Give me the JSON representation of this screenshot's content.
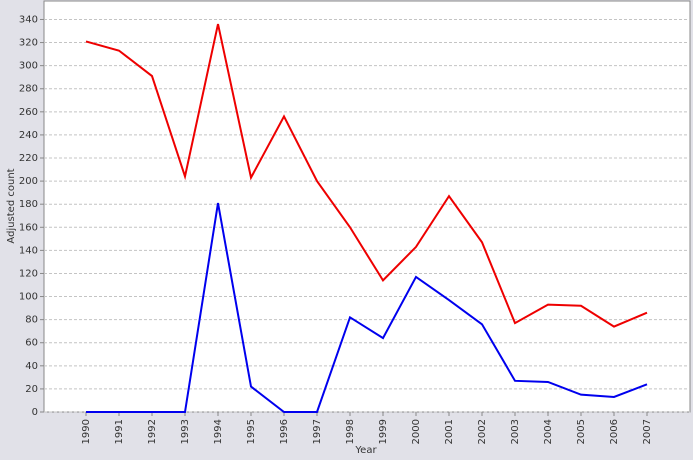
{
  "chart_data": {
    "type": "line",
    "x_label": "Year",
    "y_label": "Adjusted count",
    "categories": [
      "1990",
      "1991",
      "1992",
      "1993",
      "1994",
      "1995",
      "1996",
      "1997",
      "1998",
      "1999",
      "2000",
      "2001",
      "2002",
      "2003",
      "2004",
      "2005",
      "2006",
      "2007"
    ],
    "series": [
      {
        "color": "#ee0000",
        "values": [
          321,
          313,
          291,
          204,
          336,
          203,
          256,
          200,
          160,
          114,
          143,
          187,
          147,
          77,
          93,
          92,
          74,
          86
        ]
      },
      {
        "color": "#0000ee",
        "values": [
          0,
          0,
          0,
          0,
          181,
          22,
          0,
          0,
          82,
          64,
          117,
          97,
          76,
          27,
          26,
          15,
          13,
          24
        ]
      }
    ],
    "ylim": [
      0,
      356
    ],
    "yticks": [
      0,
      20,
      40,
      60,
      80,
      100,
      120,
      140,
      160,
      180,
      200,
      220,
      240,
      260,
      280,
      300,
      320,
      340
    ],
    "grid": true
  }
}
